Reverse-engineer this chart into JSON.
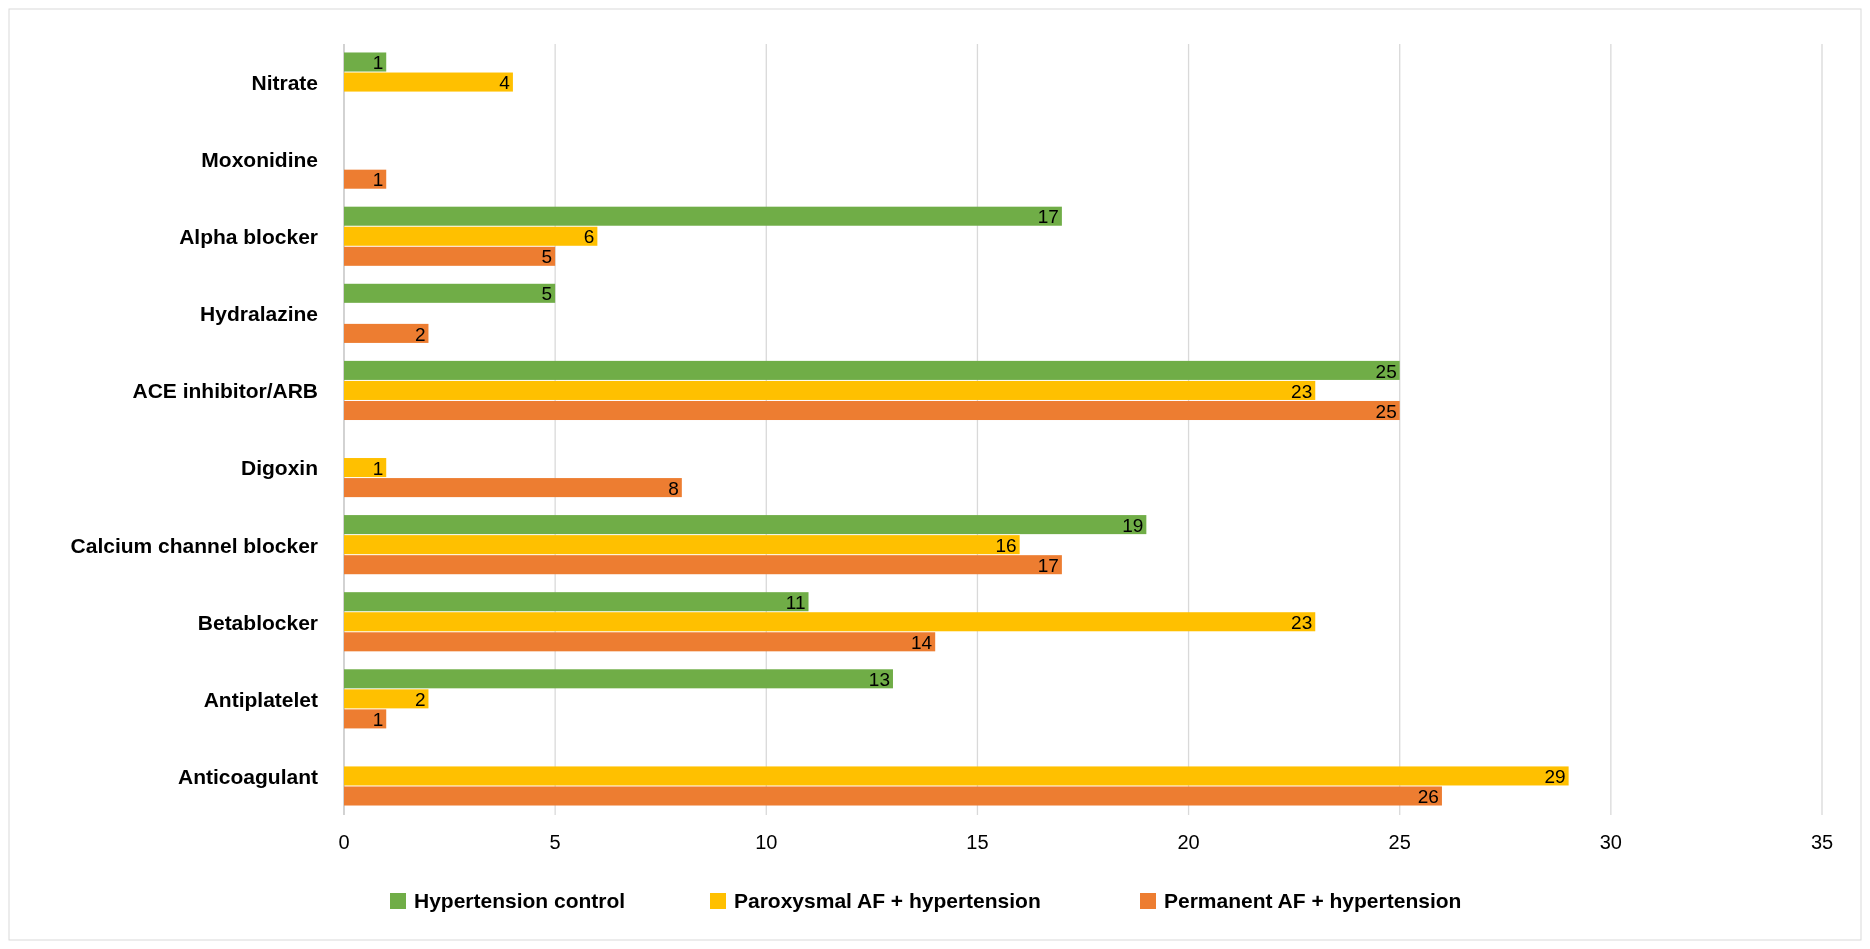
{
  "chart_data": {
    "type": "bar",
    "orientation": "horizontal",
    "categories": [
      "Nitrate",
      "Moxonidine",
      "Alpha blocker",
      "Hydralazine",
      "ACE inhibitor/ARB",
      "Digoxin",
      "Calcium channel blocker",
      "Betablocker",
      "Antiplatelet",
      "Anticoagulant"
    ],
    "series": [
      {
        "name": "Hypertension control",
        "color": "#70ad47",
        "values": [
          1,
          null,
          17,
          5,
          25,
          null,
          19,
          11,
          13,
          null
        ]
      },
      {
        "name": "Paroxysmal AF + hypertension",
        "color": "#ffc000",
        "values": [
          4,
          null,
          6,
          null,
          23,
          1,
          16,
          23,
          2,
          29
        ]
      },
      {
        "name": "Permanent AF + hypertension",
        "color": "#ed7d31",
        "values": [
          null,
          1,
          5,
          2,
          25,
          8,
          17,
          14,
          1,
          26
        ]
      }
    ],
    "xlim": [
      0,
      35
    ],
    "xticks": [
      0,
      5,
      10,
      15,
      20,
      25,
      30,
      35
    ],
    "grid": "x",
    "legend": "bottom",
    "data_labels": true
  }
}
